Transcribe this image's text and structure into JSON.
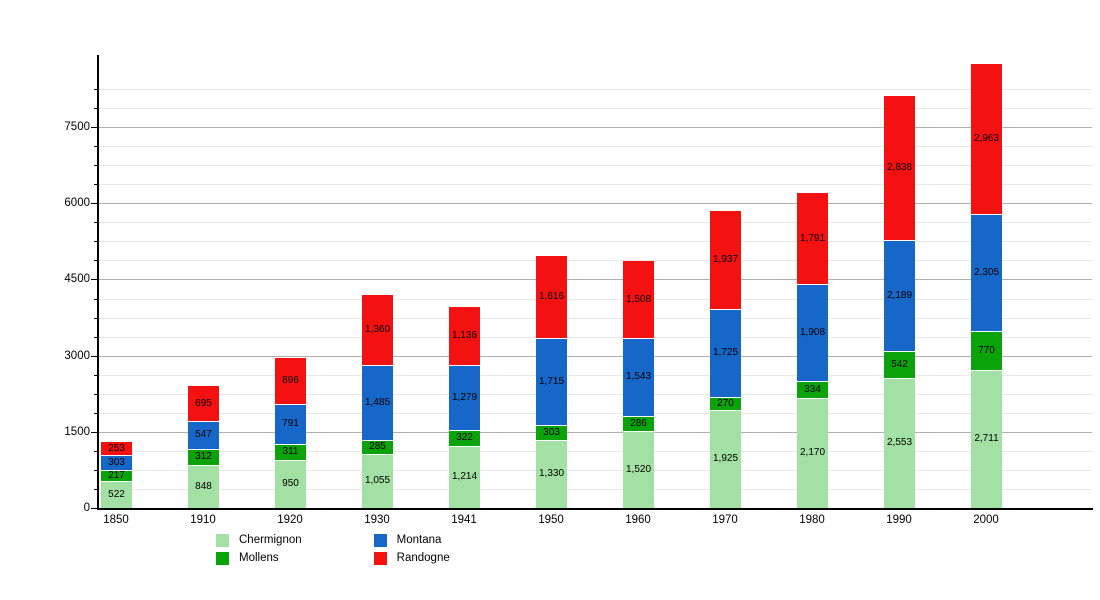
{
  "chart_data": {
    "type": "bar",
    "stacked": true,
    "title": "",
    "xlabel": "",
    "ylabel": "",
    "categories": [
      "1850",
      "1910",
      "1920",
      "1930",
      "1941",
      "1950",
      "1960",
      "1970",
      "1980",
      "1990",
      "2000"
    ],
    "series": [
      {
        "name": "Chermignon",
        "color": "#a3e0a3",
        "values": [
          522,
          848,
          950,
          1055,
          1214,
          1330,
          1520,
          1925,
          2170,
          2553,
          2711
        ]
      },
      {
        "name": "Mollens",
        "color": "#0aa40a",
        "values": [
          217,
          312,
          311,
          285,
          322,
          303,
          286,
          270,
          334,
          542,
          770
        ]
      },
      {
        "name": "Montana",
        "color": "#1767c9",
        "values": [
          303,
          547,
          791,
          1485,
          1279,
          1715,
          1543,
          1725,
          1908,
          2189,
          2305
        ]
      },
      {
        "name": "Randogne",
        "color": "#f31111",
        "values": [
          253,
          695,
          896,
          1360,
          1136,
          1616,
          1508,
          1937,
          1791,
          2838,
          2963
        ]
      }
    ],
    "ylim": [
      0,
      8920
    ],
    "y_major_ticks": [
      0,
      1500,
      3000,
      4500,
      6000,
      7500
    ],
    "y_minor_step": 375,
    "grid": "on",
    "bar_value_labels": true,
    "legend_position": "bottom",
    "legend_columns": [
      [
        "Chermignon",
        "Mollens"
      ],
      [
        "Montana",
        "Randogne"
      ]
    ]
  }
}
